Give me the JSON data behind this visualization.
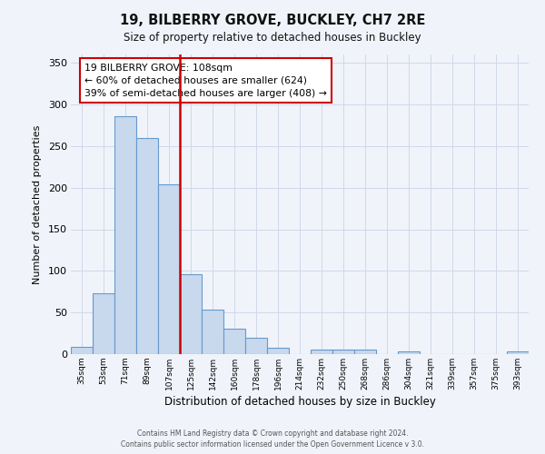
{
  "title": "19, BILBERRY GROVE, BUCKLEY, CH7 2RE",
  "subtitle": "Size of property relative to detached houses in Buckley",
  "xlabel": "Distribution of detached houses by size in Buckley",
  "ylabel": "Number of detached properties",
  "bin_labels": [
    "35sqm",
    "53sqm",
    "71sqm",
    "89sqm",
    "107sqm",
    "125sqm",
    "142sqm",
    "160sqm",
    "178sqm",
    "196sqm",
    "214sqm",
    "232sqm",
    "250sqm",
    "268sqm",
    "286sqm",
    "304sqm",
    "321sqm",
    "339sqm",
    "357sqm",
    "375sqm",
    "393sqm"
  ],
  "bar_heights": [
    9,
    73,
    286,
    260,
    204,
    96,
    54,
    31,
    20,
    8,
    0,
    5,
    5,
    5,
    0,
    3,
    0,
    0,
    0,
    0,
    3
  ],
  "bar_color": "#c8d8ed",
  "bar_edge_color": "#6699cc",
  "vline_index": 4.5,
  "vline_color": "#cc0000",
  "annotation_text": "19 BILBERRY GROVE: 108sqm\n← 60% of detached houses are smaller (624)\n39% of semi-detached houses are larger (408) →",
  "annotation_box_color": "#ffffff",
  "annotation_box_edge_color": "#cc0000",
  "ylim": [
    0,
    360
  ],
  "yticks": [
    0,
    50,
    100,
    150,
    200,
    250,
    300,
    350
  ],
  "footer_line1": "Contains HM Land Registry data © Crown copyright and database right 2024.",
  "footer_line2": "Contains public sector information licensed under the Open Government Licence v 3.0.",
  "bg_color": "#f0f4fa",
  "grid_color": "#d0d8e8",
  "figsize": [
    6.0,
    5.0
  ],
  "dpi": 100
}
